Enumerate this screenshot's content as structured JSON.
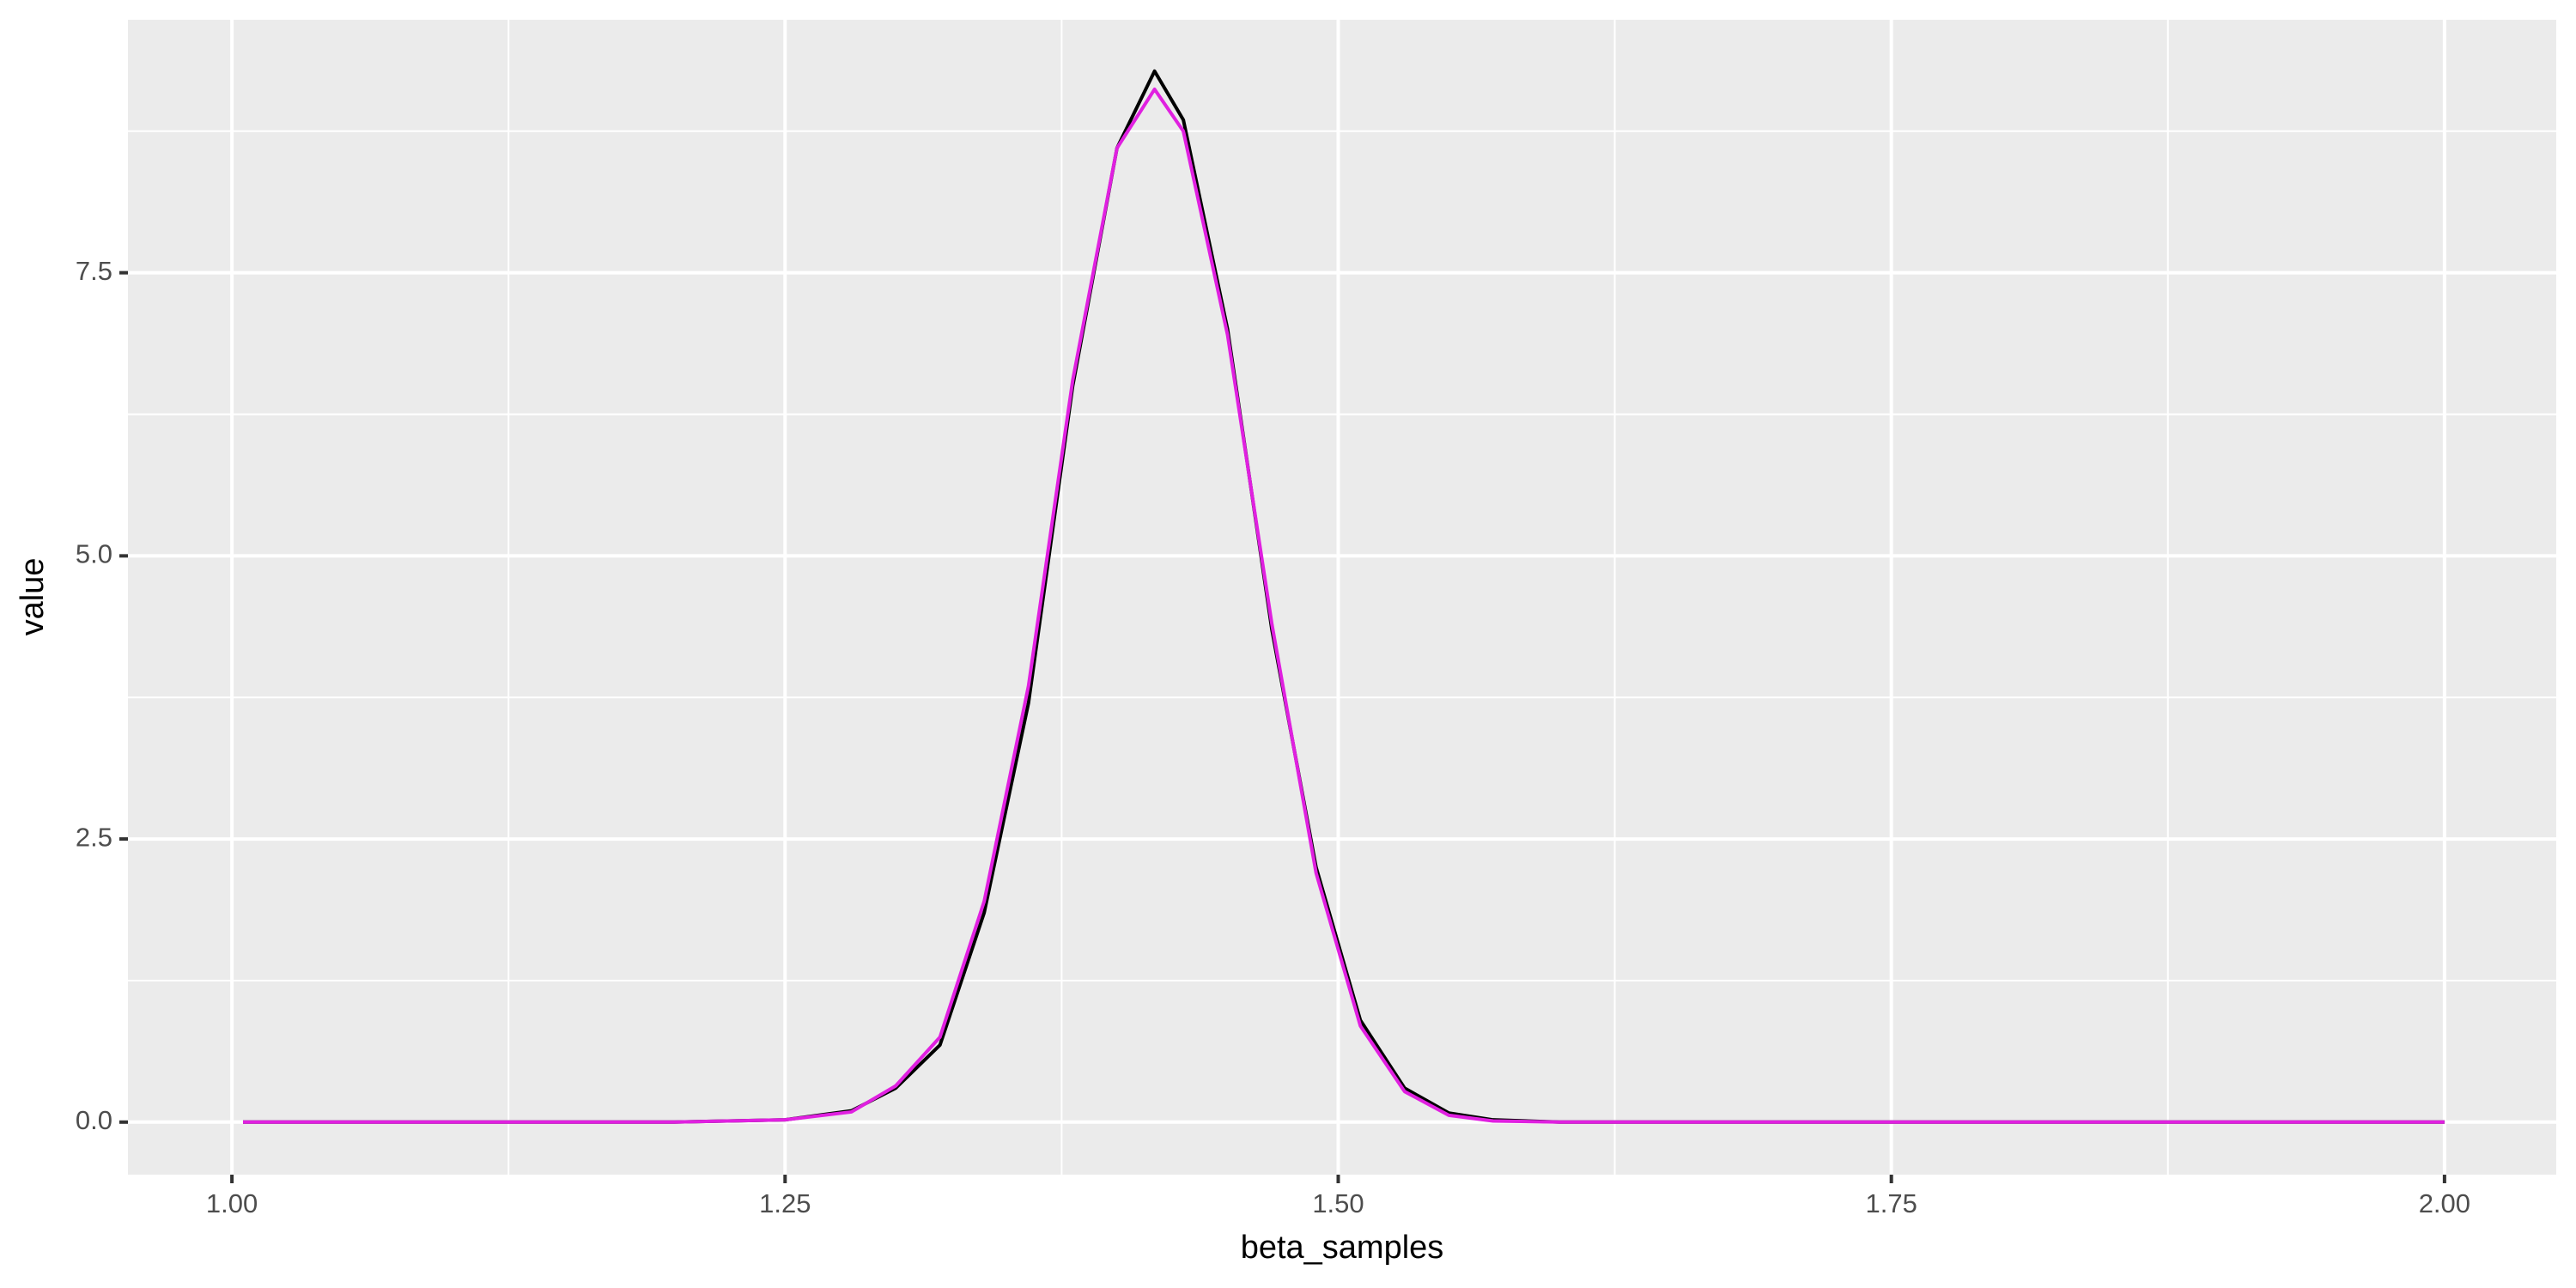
{
  "chart_data": {
    "type": "line",
    "x_label": "beta_samples",
    "y_label": "value",
    "x": [
      1.005,
      1.1,
      1.2,
      1.25,
      1.28,
      1.3,
      1.32,
      1.34,
      1.36,
      1.38,
      1.4,
      1.417,
      1.43,
      1.45,
      1.47,
      1.49,
      1.51,
      1.53,
      1.55,
      1.57,
      1.6,
      1.7,
      1.8,
      1.9,
      2.0
    ],
    "series": [
      {
        "color": "#000000",
        "values": [
          0,
          0,
          0,
          0.02,
          0.1,
          0.3,
          0.68,
          1.85,
          3.7,
          6.5,
          8.6,
          9.28,
          8.85,
          7.0,
          4.35,
          2.25,
          0.9,
          0.3,
          0.08,
          0.02,
          0,
          0,
          0,
          0,
          0
        ]
      },
      {
        "color": "#e020e0",
        "values": [
          0,
          0,
          0,
          0.02,
          0.09,
          0.32,
          0.75,
          1.95,
          3.85,
          6.55,
          8.6,
          9.12,
          8.75,
          6.95,
          4.4,
          2.2,
          0.85,
          0.27,
          0.06,
          0.01,
          0,
          0,
          0,
          0,
          0
        ]
      }
    ],
    "xlim": [
      0.953,
      2.0505
    ],
    "ylim": [
      -0.464,
      9.734
    ],
    "xticks": [
      {
        "value": 1.0,
        "label": "1.00"
      },
      {
        "value": 1.25,
        "label": "1.25"
      },
      {
        "value": 1.5,
        "label": "1.50"
      },
      {
        "value": 1.75,
        "label": "1.75"
      },
      {
        "value": 2.0,
        "label": "2.00"
      }
    ],
    "yticks": [
      {
        "value": 0,
        "label": "0.0"
      },
      2.5,
      {
        "value": 5,
        "label": "5.0"
      },
      7.5
    ],
    "grid": true
  }
}
